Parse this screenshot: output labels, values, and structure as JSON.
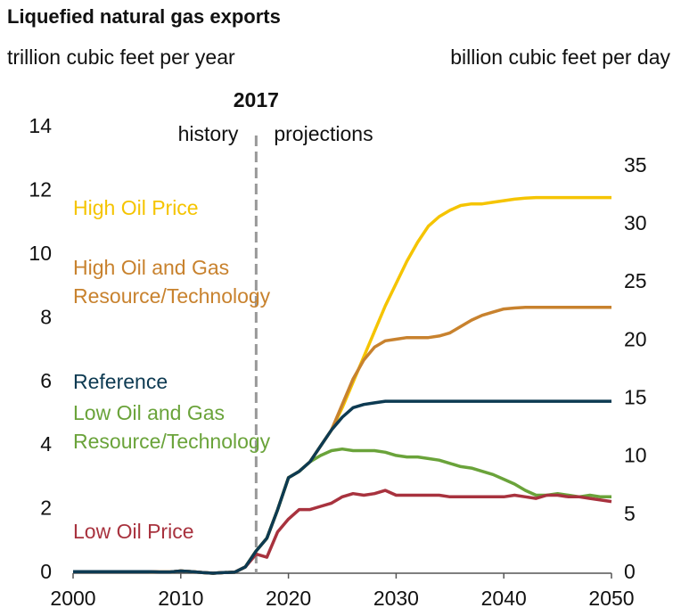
{
  "chart_data": {
    "type": "line",
    "title": "Liquefied natural gas exports",
    "y_label": "trillion cubic feet per year",
    "y2_label": "billion cubic feet per day",
    "divider_year": 2017,
    "history_label": "history",
    "projections_label": "projections",
    "x": [
      2000,
      2001,
      2002,
      2003,
      2004,
      2005,
      2006,
      2007,
      2008,
      2009,
      2010,
      2011,
      2012,
      2013,
      2014,
      2015,
      2016,
      2017,
      2018,
      2019,
      2020,
      2021,
      2022,
      2023,
      2024,
      2025,
      2026,
      2027,
      2028,
      2029,
      2030,
      2031,
      2032,
      2033,
      2034,
      2035,
      2036,
      2037,
      2038,
      2039,
      2040,
      2041,
      2042,
      2043,
      2044,
      2045,
      2046,
      2047,
      2048,
      2049,
      2050
    ],
    "xlim": [
      2000,
      2050
    ],
    "xticks": [
      2000,
      2010,
      2020,
      2030,
      2040,
      2050
    ],
    "ylim": [
      0,
      14
    ],
    "yticks": [
      0,
      2,
      4,
      6,
      8,
      10,
      12,
      14
    ],
    "y2lim": [
      0,
      38.36
    ],
    "y2ticks": [
      0,
      5,
      10,
      15,
      20,
      25,
      30,
      35
    ],
    "series": [
      {
        "name": "High Oil Price",
        "color": "#f5c400",
        "values": [
          0.05,
          0.05,
          0.05,
          0.05,
          0.05,
          0.05,
          0.05,
          0.05,
          0.04,
          0.04,
          0.07,
          0.05,
          0.02,
          0.0,
          0.02,
          0.03,
          0.2,
          0.7,
          1.1,
          2.0,
          3.0,
          3.2,
          3.5,
          4.0,
          4.5,
          5.2,
          6.0,
          6.8,
          7.6,
          8.4,
          9.1,
          9.8,
          10.4,
          10.9,
          11.2,
          11.4,
          11.55,
          11.6,
          11.6,
          11.65,
          11.7,
          11.75,
          11.78,
          11.8,
          11.8,
          11.8,
          11.8,
          11.8,
          11.8,
          11.8,
          11.8
        ]
      },
      {
        "name": "High Oil and Gas Resource/Technology",
        "color": "#c8822e",
        "values": [
          0.05,
          0.05,
          0.05,
          0.05,
          0.05,
          0.05,
          0.05,
          0.05,
          0.04,
          0.04,
          0.07,
          0.05,
          0.02,
          0.0,
          0.02,
          0.03,
          0.2,
          0.7,
          1.1,
          2.0,
          3.0,
          3.2,
          3.5,
          4.0,
          4.5,
          5.3,
          6.1,
          6.7,
          7.1,
          7.3,
          7.35,
          7.4,
          7.4,
          7.4,
          7.45,
          7.55,
          7.75,
          7.95,
          8.1,
          8.2,
          8.3,
          8.33,
          8.35,
          8.35,
          8.35,
          8.35,
          8.35,
          8.35,
          8.35,
          8.35,
          8.35
        ]
      },
      {
        "name": "Reference",
        "color": "#0d3a52",
        "values": [
          0.05,
          0.05,
          0.05,
          0.05,
          0.05,
          0.05,
          0.05,
          0.05,
          0.04,
          0.04,
          0.07,
          0.05,
          0.02,
          0.0,
          0.02,
          0.03,
          0.2,
          0.7,
          1.1,
          2.0,
          3.0,
          3.2,
          3.5,
          4.0,
          4.5,
          4.9,
          5.2,
          5.3,
          5.35,
          5.4,
          5.4,
          5.4,
          5.4,
          5.4,
          5.4,
          5.4,
          5.4,
          5.4,
          5.4,
          5.4,
          5.4,
          5.4,
          5.4,
          5.4,
          5.4,
          5.4,
          5.4,
          5.4,
          5.4,
          5.4,
          5.4
        ]
      },
      {
        "name": "Low Oil and Gas Resource/Technology",
        "color": "#6aa33a",
        "values": [
          0.05,
          0.05,
          0.05,
          0.05,
          0.05,
          0.05,
          0.05,
          0.05,
          0.04,
          0.04,
          0.07,
          0.05,
          0.02,
          0.0,
          0.02,
          0.03,
          0.2,
          0.7,
          1.1,
          2.0,
          3.0,
          3.2,
          3.5,
          3.7,
          3.85,
          3.9,
          3.85,
          3.85,
          3.85,
          3.8,
          3.7,
          3.65,
          3.65,
          3.6,
          3.55,
          3.45,
          3.35,
          3.3,
          3.2,
          3.1,
          2.95,
          2.8,
          2.6,
          2.45,
          2.45,
          2.5,
          2.45,
          2.4,
          2.45,
          2.4,
          2.4
        ]
      },
      {
        "name": "Low Oil Price",
        "color": "#a8323e",
        "values": [
          0.05,
          0.05,
          0.05,
          0.05,
          0.05,
          0.05,
          0.05,
          0.05,
          0.04,
          0.04,
          0.07,
          0.05,
          0.02,
          0.0,
          0.02,
          0.03,
          0.2,
          0.6,
          0.5,
          1.3,
          1.7,
          2.0,
          2.0,
          2.1,
          2.2,
          2.4,
          2.5,
          2.45,
          2.5,
          2.6,
          2.45,
          2.45,
          2.45,
          2.45,
          2.45,
          2.4,
          2.4,
          2.4,
          2.4,
          2.4,
          2.4,
          2.45,
          2.4,
          2.35,
          2.45,
          2.45,
          2.4,
          2.4,
          2.35,
          2.3,
          2.25
        ]
      }
    ]
  }
}
